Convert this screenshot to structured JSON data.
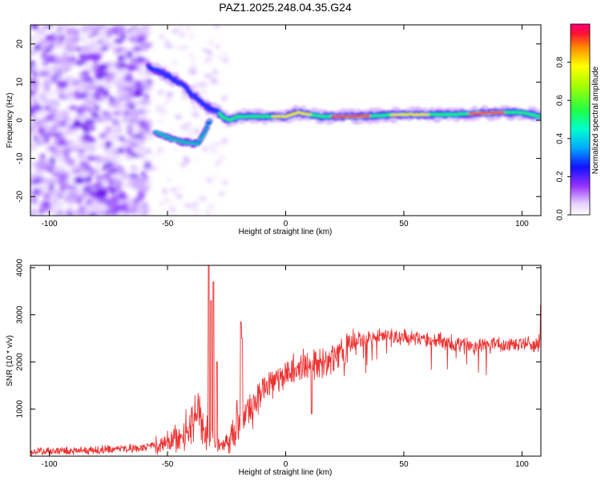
{
  "chart_data": [
    {
      "type": "heatmap",
      "title": "PAZ1.2025.248.04.35.G24",
      "xlabel": "Height of straight line (km)",
      "ylabel": "Frequency (Hz)",
      "xlim": [
        -108,
        108
      ],
      "ylim": [
        -25,
        25
      ],
      "xticks": [
        -100,
        -50,
        0,
        50,
        100
      ],
      "yticks": [
        -20,
        -10,
        0,
        10,
        20
      ],
      "colorbar": {
        "label": "Normalized spectral amplitude",
        "range": [
          0,
          1
        ],
        "ticks": [
          "0.0",
          "0.2",
          "0.4",
          "0.6",
          "0.8"
        ]
      },
      "track": [
        {
          "x": -58,
          "y": 14
        },
        {
          "x": -54,
          "y": 13
        },
        {
          "x": -48,
          "y": 11
        },
        {
          "x": -44,
          "y": 9.5
        },
        {
          "x": -40,
          "y": 7
        },
        {
          "x": -36,
          "y": 5
        },
        {
          "x": -32,
          "y": 3
        },
        {
          "x": -29,
          "y": 2.5
        },
        {
          "x": -27,
          "y": 1
        },
        {
          "x": -24,
          "y": 0
        },
        {
          "x": -20,
          "y": 1
        },
        {
          "x": -10,
          "y": 1
        },
        {
          "x": 0,
          "y": 1
        },
        {
          "x": 5,
          "y": 2
        },
        {
          "x": 15,
          "y": 1
        },
        {
          "x": 30,
          "y": 1
        },
        {
          "x": 50,
          "y": 1.5
        },
        {
          "x": 70,
          "y": 1.5
        },
        {
          "x": 90,
          "y": 2
        },
        {
          "x": 100,
          "y": 2
        },
        {
          "x": 108,
          "y": 1
        }
      ],
      "lower_branch": [
        {
          "x": -55,
          "y": -3
        },
        {
          "x": -50,
          "y": -4.5
        },
        {
          "x": -45,
          "y": -5.5
        },
        {
          "x": -40,
          "y": -6
        },
        {
          "x": -37,
          "y": -6
        },
        {
          "x": -34,
          "y": -3
        },
        {
          "x": -32,
          "y": 0
        }
      ]
    },
    {
      "type": "line",
      "xlabel": "Height of straight line (km)",
      "ylabel": "SNR (10 * v/v)",
      "xlim": [
        -108,
        108
      ],
      "ylim": [
        0,
        4050
      ],
      "xticks": [
        -100,
        -50,
        0,
        50,
        100
      ],
      "yticks": [
        1000,
        2000,
        3000,
        4000
      ],
      "series": [
        {
          "name": "SNR",
          "color": "#ee3333",
          "envelope": [
            {
              "x": -108,
              "y": 100
            },
            {
              "x": -80,
              "y": 130
            },
            {
              "x": -60,
              "y": 170
            },
            {
              "x": -50,
              "y": 290
            },
            {
              "x": -42,
              "y": 520
            },
            {
              "x": -38,
              "y": 820
            },
            {
              "x": -30,
              "y": 270
            },
            {
              "x": -26,
              "y": 210
            },
            {
              "x": -20,
              "y": 650
            },
            {
              "x": -15,
              "y": 1000
            },
            {
              "x": -10,
              "y": 1380
            },
            {
              "x": -5,
              "y": 1580
            },
            {
              "x": 0,
              "y": 1780
            },
            {
              "x": 5,
              "y": 1880
            },
            {
              "x": 10,
              "y": 1980
            },
            {
              "x": 15,
              "y": 1950
            },
            {
              "x": 20,
              "y": 2060
            },
            {
              "x": 25,
              "y": 2250
            },
            {
              "x": 30,
              "y": 2450
            },
            {
              "x": 40,
              "y": 2560
            },
            {
              "x": 50,
              "y": 2520
            },
            {
              "x": 60,
              "y": 2480
            },
            {
              "x": 70,
              "y": 2400
            },
            {
              "x": 80,
              "y": 2330
            },
            {
              "x": 90,
              "y": 2360
            },
            {
              "x": 100,
              "y": 2380
            },
            {
              "x": 108,
              "y": 2400
            }
          ],
          "spikes": [
            {
              "x": -32.5,
              "y": 4050
            },
            {
              "x": -30.5,
              "y": 3700
            },
            {
              "x": -31.5,
              "y": 3300
            },
            {
              "x": -29,
              "y": 2000
            },
            {
              "x": -19,
              "y": 2850
            },
            {
              "x": -18.5,
              "y": 2500
            },
            {
              "x": 11,
              "y": 900
            },
            {
              "x": 108,
              "y": 3200
            }
          ]
        }
      ]
    }
  ]
}
